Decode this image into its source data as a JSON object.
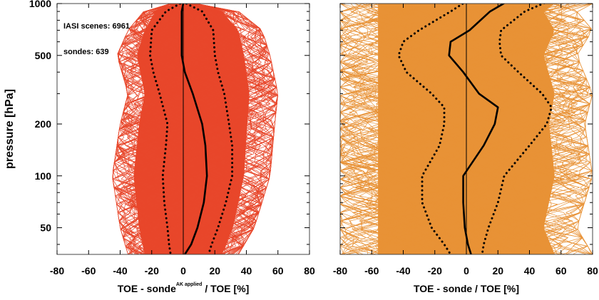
{
  "chart_data": [
    {
      "type": "line",
      "title": "",
      "xlabel": "TOE - sonde",
      "xlabel_superscript": "AK applied",
      "xlabel_suffix": " / TOE [%]",
      "ylabel": "pressure [hPa]",
      "xlim": [
        -80,
        80
      ],
      "ylim": [
        1000,
        35
      ],
      "yscale": "log",
      "xticks": [
        "-80",
        "-60",
        "-40",
        "-20",
        "0",
        "20",
        "40",
        "60",
        "80"
      ],
      "yticks": [
        "50",
        "100",
        "200",
        "500",
        "1000"
      ],
      "annotations": [
        "IASI scenes: 6961",
        "sondes: 639"
      ],
      "colors": {
        "spread": "#e8472b",
        "lines": "#000000"
      },
      "spread_lower": {
        "y": [
          1000,
          900,
          700,
          500,
          300,
          200,
          100,
          50,
          35
        ],
        "x": [
          -8,
          -25,
          -35,
          -42,
          -35,
          -40,
          -45,
          -40,
          -35
        ]
      },
      "spread_upper": {
        "y": [
          1000,
          900,
          700,
          500,
          300,
          200,
          100,
          50,
          35
        ],
        "x": [
          8,
          35,
          50,
          55,
          60,
          58,
          55,
          45,
          35
        ]
      },
      "series": [
        {
          "style": "solid",
          "y": [
            1000,
            900,
            700,
            500,
            400,
            300,
            200,
            150,
            100,
            70,
            50,
            40,
            35
          ],
          "x": [
            0,
            -1,
            -1,
            -1,
            1,
            6,
            12,
            14,
            15,
            13,
            9,
            5,
            1
          ]
        },
        {
          "style": "dotted",
          "y": [
            1000,
            900,
            700,
            500,
            400,
            300,
            200,
            150,
            100,
            70,
            50,
            40,
            35
          ],
          "x": [
            -2,
            -11,
            -20,
            -21,
            -19,
            -15,
            -10,
            -11,
            -13,
            -12,
            -10,
            -9,
            -8
          ]
        },
        {
          "style": "dotted",
          "y": [
            1000,
            900,
            700,
            500,
            400,
            300,
            200,
            150,
            100,
            70,
            50,
            40,
            35
          ],
          "x": [
            2,
            12,
            19,
            20,
            22,
            26,
            29,
            31,
            31,
            27,
            22,
            18,
            16
          ]
        }
      ]
    },
    {
      "type": "line",
      "title": "",
      "xlabel": "TOE - sonde / TOE [%]",
      "xlim": [
        -80,
        80
      ],
      "ylim": [
        1000,
        35
      ],
      "yscale": "log",
      "xticks": [
        "-80",
        "-60",
        "-40",
        "-20",
        "0",
        "20",
        "40",
        "60",
        "80"
      ],
      "yticks": [
        "50",
        "100",
        "200",
        "500",
        "1000"
      ],
      "colors": {
        "spread": "#e89236",
        "lines": "#000000"
      },
      "spread_lower": {
        "y": [
          1000,
          900,
          700,
          500,
          300,
          200,
          100,
          50,
          35
        ],
        "x": [
          -80,
          -80,
          -80,
          -80,
          -80,
          -80,
          -80,
          -80,
          -80
        ]
      },
      "spread_upper": {
        "y": [
          1000,
          900,
          700,
          500,
          300,
          200,
          100,
          50,
          35
        ],
        "x": [
          80,
          70,
          80,
          70,
          80,
          75,
          80,
          70,
          80
        ]
      },
      "series": [
        {
          "style": "solid",
          "y": [
            1030,
            900,
            700,
            600,
            500,
            400,
            300,
            250,
            200,
            150,
            100,
            70,
            50,
            40,
            35
          ],
          "x": [
            26,
            15,
            2,
            -10,
            -11,
            -2,
            8,
            20,
            18,
            11,
            -2,
            -2,
            -1,
            1,
            3
          ]
        },
        {
          "style": "dotted",
          "y": [
            1030,
            900,
            700,
            600,
            500,
            400,
            300,
            250,
            200,
            150,
            100,
            70,
            50,
            40,
            35
          ],
          "x": [
            0,
            -10,
            -30,
            -40,
            -43,
            -38,
            -22,
            -14,
            -14,
            -17,
            -28,
            -28,
            -22,
            -14,
            -10
          ]
        },
        {
          "style": "dotted",
          "y": [
            1030,
            900,
            700,
            600,
            500,
            400,
            300,
            250,
            200,
            150,
            100,
            70,
            50,
            40,
            35
          ],
          "x": [
            52,
            37,
            22,
            21,
            22,
            33,
            48,
            54,
            51,
            40,
            24,
            20,
            14,
            11,
            10
          ]
        }
      ]
    }
  ]
}
